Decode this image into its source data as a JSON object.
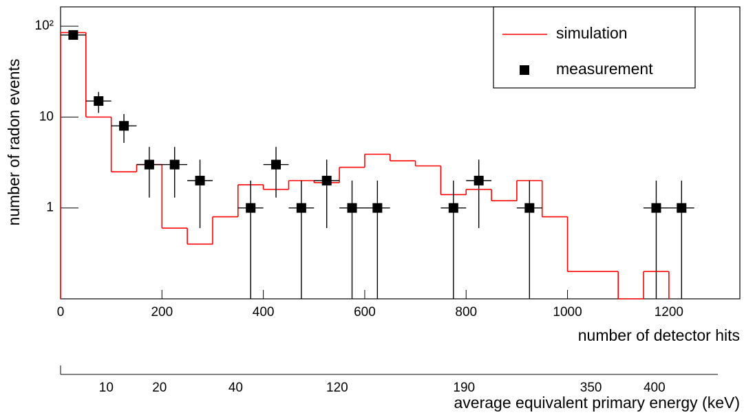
{
  "chart_data": {
    "type": "histogram",
    "xlabel": "number of detector hits",
    "ylabel": "number of radon events",
    "x2label": "average equivalent primary energy (keV)",
    "log_y": true,
    "legend": "top-right",
    "xlim": [
      0,
      1340
    ],
    "xticks": [
      0,
      200,
      400,
      600,
      800,
      1000,
      1200
    ],
    "ylim": [
      0.1,
      163
    ],
    "yticks": [
      1,
      10,
      {
        "value": 100,
        "label": "10²"
      }
    ],
    "x2lim": [
      0,
      1295
    ],
    "x2ticks": [
      {
        "value": 90,
        "label": "10"
      },
      {
        "value": 195,
        "label": "20"
      },
      {
        "value": 345,
        "label": "40"
      },
      {
        "value": 545,
        "label": "120"
      },
      {
        "value": 795,
        "label": "190"
      },
      {
        "value": 1045,
        "label": "350"
      },
      {
        "value": 1170,
        "label": "400"
      }
    ],
    "bins": [
      0,
      50,
      100,
      150,
      200,
      250,
      300,
      350,
      400,
      450,
      500,
      550,
      600,
      650,
      700,
      750,
      800,
      850,
      900,
      950,
      1000,
      1050,
      1100,
      1150,
      1200
    ],
    "series": [
      {
        "name": "simulation",
        "color": "#ff0000",
        "values": [
          85,
          10,
          2.5,
          3,
          0.6,
          0.4,
          0.8,
          1.8,
          1.6,
          2,
          1.9,
          2.8,
          3.9,
          3.3,
          2.9,
          1.4,
          1.6,
          1.2,
          2,
          0.8,
          0.2,
          0.2,
          0,
          0.2
        ]
      }
    ],
    "points": {
      "name": "measurement",
      "color": "#000000",
      "x": [
        25,
        75,
        125,
        175,
        225,
        275,
        375,
        425,
        475,
        525,
        575,
        625,
        775,
        825,
        925,
        1175,
        1225
      ],
      "values": [
        80,
        15,
        8,
        3,
        3,
        2,
        1,
        3,
        1,
        2,
        1,
        1,
        1,
        2,
        1,
        1,
        1
      ],
      "errors": [
        9,
        3.9,
        2.8,
        1.7,
        1.7,
        1.4,
        1,
        1.7,
        1,
        1.4,
        1,
        1,
        1,
        1.4,
        1,
        1,
        1
      ]
    }
  }
}
